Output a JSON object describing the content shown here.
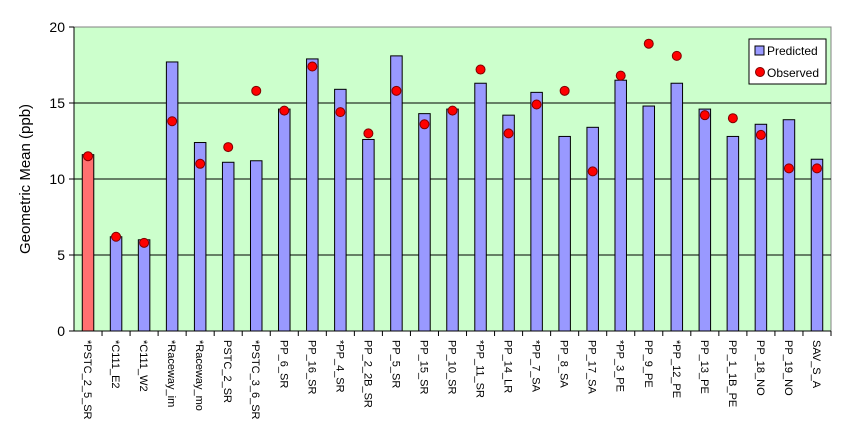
{
  "chart_data": {
    "type": "bar",
    "ylabel": "Geometric Mean (ppb)",
    "xlabel": "",
    "ylim": [
      0,
      20
    ],
    "yticks": [
      0,
      5,
      10,
      15,
      20
    ],
    "grid": true,
    "legend_placement": "top-right",
    "colors": {
      "plot_background": "#ccffcc",
      "predicted_bar": "#9999ff",
      "highlight_bar": "#ff7070",
      "observed_marker": "#ff0000",
      "gridline": "#000000"
    },
    "categories": [
      "*PSTC_2_5_SR",
      "*C111_E2",
      "*C111_W2",
      "*Raceway_im",
      "*Raceway_mo",
      "PSTC_2_SR",
      "*PSTC_3_6_SR",
      "PP_6_SR",
      "PP_16_SR",
      "*PP_4_SR",
      "PP_2_2B_SR",
      "PP_5_SR",
      "PP_15_SR",
      "PP_10_SR",
      "*PP_11_SR",
      "PP_14_LR",
      "*PP_7_SA",
      "PP_8_SA",
      "PP_17_SA",
      "*PP_3_PE",
      "PP_9_PE",
      "*PP_12_PE",
      "PP_13_PE",
      "PP_1_1B_PE",
      "PP_18_NO",
      "PP_19_NO",
      "SAV_S_A"
    ],
    "highlighted_category": "*PSTC_2_5_SR",
    "series": [
      {
        "name": "Predicted",
        "type": "bar",
        "values": [
          11.6,
          6.2,
          6.0,
          17.7,
          12.4,
          11.1,
          11.2,
          14.6,
          17.9,
          15.9,
          12.6,
          18.1,
          14.3,
          14.6,
          16.3,
          14.2,
          15.7,
          12.8,
          13.4,
          16.5,
          14.8,
          16.3,
          14.6,
          12.8,
          13.6,
          13.9,
          11.3
        ]
      },
      {
        "name": "Observed",
        "type": "scatter",
        "values": [
          11.5,
          6.2,
          5.8,
          13.8,
          11.0,
          12.1,
          15.8,
          14.5,
          17.4,
          14.4,
          13.0,
          15.8,
          13.6,
          14.5,
          17.2,
          13.0,
          14.9,
          15.8,
          10.5,
          16.8,
          18.9,
          18.1,
          14.2,
          14.0,
          12.9,
          10.7,
          10.7
        ]
      }
    ]
  }
}
